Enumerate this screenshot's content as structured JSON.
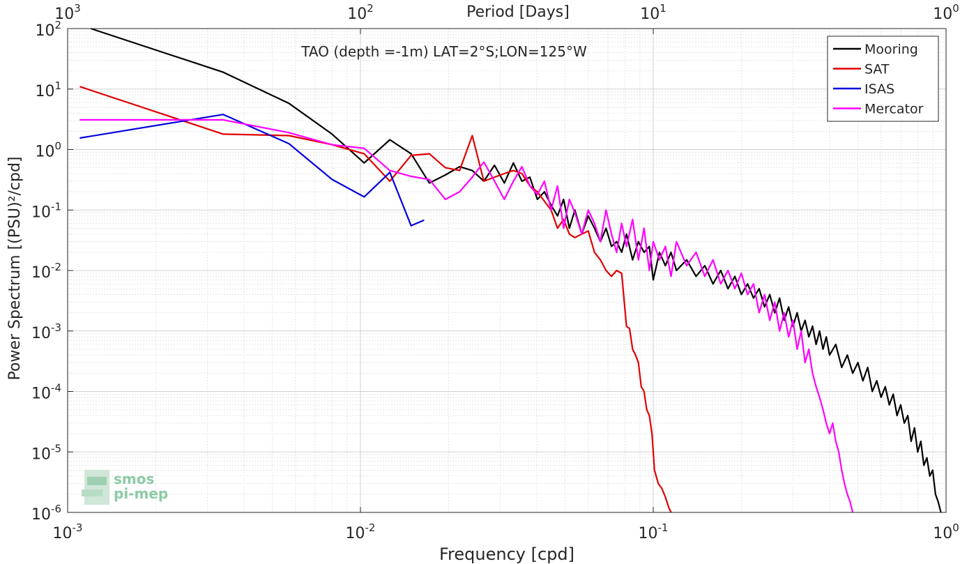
{
  "chart_data": {
    "type": "line",
    "title": "TAO (depth =-1m) LAT=2°S;LON=125°W",
    "xlabel": "Frequency [cpd]",
    "ylabel": "Power Spectrum [(PSU)²/cpd]",
    "top_xlabel": "Period [Days]",
    "x_scale": "log",
    "y_scale": "log",
    "xlim": [
      0.001,
      1
    ],
    "ylim": [
      1e-06,
      100
    ],
    "top_xlim": [
      1000,
      1
    ],
    "grid": true,
    "legend_position": "top-right",
    "x_ticks": [
      {
        "value": 0.001,
        "base": "10",
        "exp": "-3"
      },
      {
        "value": 0.01,
        "base": "10",
        "exp": "-2"
      },
      {
        "value": 0.1,
        "base": "10",
        "exp": "-1"
      },
      {
        "value": 1,
        "base": "10",
        "exp": "0"
      }
    ],
    "y_ticks": [
      {
        "value": 100,
        "base": "10",
        "exp": "2"
      },
      {
        "value": 10,
        "base": "10",
        "exp": "1"
      },
      {
        "value": 1,
        "base": "10",
        "exp": "0"
      },
      {
        "value": 0.1,
        "base": "10",
        "exp": "-1"
      },
      {
        "value": 0.01,
        "base": "10",
        "exp": "-2"
      },
      {
        "value": 0.001,
        "base": "10",
        "exp": "-3"
      },
      {
        "value": 0.0001,
        "base": "10",
        "exp": "-4"
      },
      {
        "value": 1e-05,
        "base": "10",
        "exp": "-5"
      },
      {
        "value": 1e-06,
        "base": "10",
        "exp": "-6"
      }
    ],
    "top_ticks": [
      {
        "value": 1000,
        "base": "10",
        "exp": "3"
      },
      {
        "value": 100,
        "base": "10",
        "exp": "2"
      },
      {
        "value": 10,
        "base": "10",
        "exp": "1"
      },
      {
        "value": 1,
        "base": "10",
        "exp": "0"
      }
    ],
    "series": [
      {
        "name": "Mooring",
        "color": "#000000",
        "x": [
          0.0012,
          0.0034,
          0.0057,
          0.008,
          0.0103,
          0.0126,
          0.0149,
          0.0172,
          0.0195,
          0.0218,
          0.0241,
          0.0264,
          0.0287,
          0.031,
          0.0333,
          0.0356,
          0.0379,
          0.0402,
          0.0425,
          0.0448,
          0.0471,
          0.0494,
          0.0517,
          0.054,
          0.057,
          0.06,
          0.063,
          0.066,
          0.069,
          0.072,
          0.075,
          0.078,
          0.081,
          0.085,
          0.089,
          0.093,
          0.097,
          0.1,
          0.105,
          0.11,
          0.115,
          0.12,
          0.13,
          0.14,
          0.15,
          0.16,
          0.17,
          0.18,
          0.19,
          0.2,
          0.21,
          0.22,
          0.23,
          0.24,
          0.25,
          0.26,
          0.27,
          0.28,
          0.29,
          0.3,
          0.31,
          0.32,
          0.33,
          0.34,
          0.35,
          0.36,
          0.37,
          0.38,
          0.39,
          0.4,
          0.42,
          0.44,
          0.46,
          0.48,
          0.5,
          0.52,
          0.54,
          0.56,
          0.58,
          0.6,
          0.62,
          0.64,
          0.66,
          0.68,
          0.7,
          0.72,
          0.74,
          0.76,
          0.78,
          0.8,
          0.82,
          0.84,
          0.86,
          0.88,
          0.9,
          0.92,
          0.94,
          0.96
        ],
        "y": [
          100,
          19,
          5.8,
          1.8,
          0.6,
          1.45,
          0.85,
          0.28,
          0.38,
          0.52,
          0.45,
          0.3,
          0.55,
          0.28,
          0.6,
          0.3,
          0.35,
          0.15,
          0.2,
          0.12,
          0.08,
          0.15,
          0.05,
          0.1,
          0.04,
          0.08,
          0.05,
          0.03,
          0.05,
          0.025,
          0.03,
          0.02,
          0.04,
          0.015,
          0.03,
          0.02,
          0.025,
          0.007,
          0.02,
          0.012,
          0.02,
          0.01,
          0.015,
          0.008,
          0.012,
          0.006,
          0.01,
          0.005,
          0.008,
          0.004,
          0.006,
          0.0035,
          0.005,
          0.0025,
          0.004,
          0.002,
          0.0035,
          0.0015,
          0.0025,
          0.0012,
          0.002,
          0.001,
          0.0015,
          0.0008,
          0.0012,
          0.0006,
          0.001,
          0.0005,
          0.0008,
          0.0004,
          0.0006,
          0.00025,
          0.0004,
          0.0002,
          0.0003,
          0.00015,
          0.00025,
          0.0001,
          0.00015,
          8e-05,
          0.00012,
          6e-05,
          9e-05,
          4e-05,
          6e-05,
          3e-05,
          4e-05,
          1.5e-05,
          2.5e-05,
          1e-05,
          1.5e-05,
          6e-06,
          8e-06,
          4e-06,
          5e-06,
          2e-06,
          1.5e-06,
          1e-06
        ]
      },
      {
        "name": "SAT",
        "color": "#e00000",
        "x": [
          0.0011,
          0.0034,
          0.0057,
          0.008,
          0.0103,
          0.0126,
          0.0149,
          0.0172,
          0.0195,
          0.0218,
          0.0241,
          0.0264,
          0.0287,
          0.031,
          0.0333,
          0.0356,
          0.0379,
          0.0402,
          0.0425,
          0.0448,
          0.0471,
          0.0494,
          0.0517,
          0.054,
          0.057,
          0.06,
          0.063,
          0.066,
          0.069,
          0.072,
          0.075,
          0.078,
          0.081,
          0.083,
          0.085,
          0.087,
          0.089,
          0.091,
          0.093,
          0.095,
          0.097,
          0.099,
          0.101,
          0.104,
          0.107,
          0.11,
          0.113,
          0.115
        ],
        "y": [
          11,
          1.8,
          1.7,
          1.2,
          0.85,
          0.3,
          0.8,
          0.85,
          0.5,
          0.45,
          1.7,
          0.3,
          0.35,
          0.4,
          0.45,
          0.4,
          0.25,
          0.2,
          0.14,
          0.1,
          0.05,
          0.07,
          0.04,
          0.035,
          0.04,
          0.045,
          0.02,
          0.015,
          0.01,
          0.008,
          0.01,
          0.009,
          0.0012,
          0.0011,
          0.0005,
          0.0004,
          0.0003,
          0.00012,
          0.0001,
          5e-05,
          4e-05,
          2e-05,
          5e-06,
          3e-06,
          2.5e-06,
          1.8e-06,
          1.2e-06,
          1e-06
        ]
      },
      {
        "name": "ISAS",
        "color": "#0000e0",
        "x": [
          0.0011,
          0.0034,
          0.0057,
          0.008,
          0.0103,
          0.0126,
          0.0149,
          0.0165
        ],
        "y": [
          1.55,
          3.8,
          1.25,
          0.32,
          0.165,
          0.42,
          0.055,
          0.068
        ]
      },
      {
        "name": "Mercator",
        "color": "#ff00ff",
        "x": [
          0.0011,
          0.0034,
          0.0057,
          0.008,
          0.0103,
          0.0126,
          0.0149,
          0.0172,
          0.0195,
          0.0218,
          0.0241,
          0.0264,
          0.0287,
          0.031,
          0.0333,
          0.0356,
          0.0379,
          0.0402,
          0.0425,
          0.0448,
          0.0471,
          0.0494,
          0.0517,
          0.054,
          0.057,
          0.06,
          0.063,
          0.066,
          0.069,
          0.072,
          0.075,
          0.078,
          0.081,
          0.085,
          0.089,
          0.093,
          0.097,
          0.1,
          0.105,
          0.11,
          0.115,
          0.12,
          0.13,
          0.14,
          0.15,
          0.16,
          0.17,
          0.18,
          0.19,
          0.2,
          0.21,
          0.22,
          0.23,
          0.24,
          0.25,
          0.26,
          0.27,
          0.28,
          0.29,
          0.3,
          0.31,
          0.32,
          0.33,
          0.34,
          0.35,
          0.36,
          0.37,
          0.38,
          0.39,
          0.4,
          0.41,
          0.42,
          0.43,
          0.44,
          0.45,
          0.46,
          0.47,
          0.48
        ],
        "y": [
          3.1,
          3.1,
          1.9,
          1.2,
          1.05,
          0.45,
          0.36,
          0.32,
          0.15,
          0.2,
          0.35,
          0.62,
          0.3,
          0.15,
          0.3,
          0.52,
          0.25,
          0.18,
          0.3,
          0.1,
          0.25,
          0.05,
          0.15,
          0.09,
          0.04,
          0.1,
          0.06,
          0.03,
          0.1,
          0.04,
          0.02,
          0.06,
          0.025,
          0.07,
          0.015,
          0.05,
          0.01,
          0.03,
          0.015,
          0.025,
          0.008,
          0.03,
          0.012,
          0.02,
          0.008,
          0.015,
          0.006,
          0.01,
          0.005,
          0.009,
          0.004,
          0.006,
          0.002,
          0.004,
          0.0015,
          0.003,
          0.001,
          0.002,
          0.0008,
          0.0015,
          0.0005,
          0.001,
          0.0003,
          0.0005,
          0.0002,
          0.00012,
          8e-05,
          5e-05,
          3e-05,
          2e-05,
          3e-05,
          1.5e-05,
          1e-05,
          5e-06,
          3e-06,
          2e-06,
          1.5e-06,
          1e-06
        ]
      }
    ]
  },
  "logo": {
    "line1": "smos",
    "line2": "pi-mep"
  }
}
